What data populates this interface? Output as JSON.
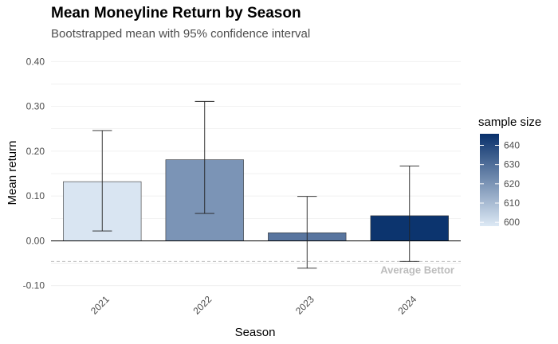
{
  "chart_data": {
    "type": "bar",
    "title": "Mean Moneyline Return by Season",
    "subtitle": "Bootstrapped mean with 95% confidence interval",
    "xlabel": "Season",
    "ylabel": "Mean return",
    "categories": [
      "2021",
      "2022",
      "2023",
      "2024"
    ],
    "values": [
      0.132,
      0.181,
      0.018,
      0.056
    ],
    "ci_lower": [
      0.022,
      0.061,
      -0.061,
      -0.046
    ],
    "ci_upper": [
      0.246,
      0.311,
      0.099,
      0.167
    ],
    "sample_size": [
      599,
      620,
      628,
      645
    ],
    "ylim": [
      -0.12,
      0.42
    ],
    "y_ticks": [
      -0.1,
      0.0,
      0.1,
      0.2,
      0.3,
      0.4
    ],
    "y_tick_labels": [
      "-0.10",
      "0.00",
      "0.10",
      "0.20",
      "0.30",
      "0.40"
    ],
    "reference_line": {
      "value": -0.046,
      "label": "Average Bettor",
      "style": "dashed",
      "color": "#bdbdbd"
    },
    "legend": {
      "title": "sample size",
      "position": "right",
      "range": [
        598,
        646
      ],
      "ticks": [
        600,
        610,
        620,
        630,
        640
      ],
      "color_low": "#dde9f5",
      "color_high": "#08306b"
    },
    "grid": true
  }
}
